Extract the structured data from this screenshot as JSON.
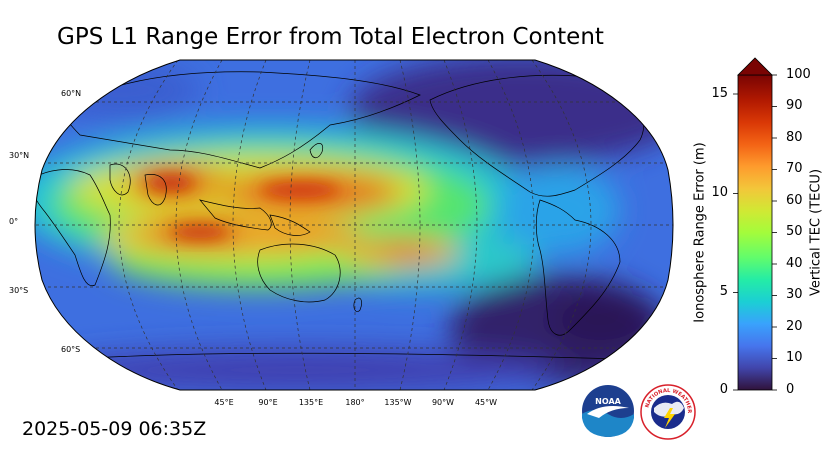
{
  "title": "GPS L1 Range Error from Total Electron Content",
  "timestamp": "2025-05-09 06:35Z",
  "map": {
    "projection": "Robinson (Pacific-centered)",
    "lat_labels": [
      "60°N",
      "30°N",
      "0°",
      "30°S",
      "60°S"
    ],
    "lon_labels": [
      "45°E",
      "90°E",
      "135°E",
      "180°",
      "135°W",
      "90°W",
      "45°W"
    ]
  },
  "colorbar": {
    "left_label": "Ionosphere Range Error (m)",
    "right_label": "Vertical TEC (TECU)",
    "left_ticks": [
      "0",
      "5",
      "10",
      "15"
    ],
    "right_ticks": [
      "0",
      "10",
      "20",
      "30",
      "40",
      "50",
      "60",
      "70",
      "80",
      "90",
      "100"
    ],
    "extend": "max",
    "extend_color": "#7a0403"
  },
  "logos": {
    "noaa_text": "NOAA",
    "nws_text": "NATIONAL WEATHER SERVICE"
  }
}
